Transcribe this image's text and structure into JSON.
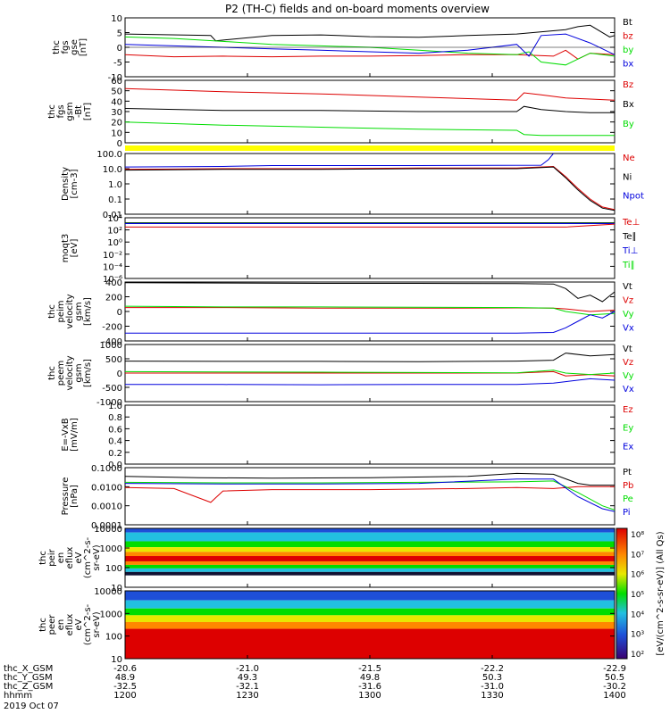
{
  "title": "P2 (TH-C) fields and on-board moments overview",
  "colors": {
    "black": "#000000",
    "red": "#dd0000",
    "green": "#00dd00",
    "blue": "#0000dd",
    "yellow": "#ffff00"
  },
  "chart_data": [
    {
      "type": "line",
      "ylabel_lines": [
        "thc",
        "fgs",
        "gse",
        "[nT]"
      ],
      "ylim": [
        -10,
        10
      ],
      "yticks": [
        "10",
        "5",
        "0",
        "-5",
        "-10"
      ],
      "legend": [
        {
          "label": "Bt",
          "color": "black"
        },
        {
          "label": "bz",
          "color": "red"
        },
        {
          "label": "by",
          "color": "green"
        },
        {
          "label": "bx",
          "color": "blue"
        }
      ],
      "series": [
        {
          "color": "black",
          "x": [
            0,
            35,
            37,
            60,
            80,
            100,
            120,
            140,
            160,
            180,
            185,
            190,
            198,
            200
          ],
          "y": [
            4.5,
            4.0,
            2.2,
            4.0,
            4.2,
            3.6,
            3.4,
            4.0,
            4.5,
            6.0,
            7.0,
            7.5,
            3.5,
            4.0
          ]
        },
        {
          "color": "red",
          "x": [
            0,
            20,
            40,
            60,
            80,
            100,
            120,
            140,
            160,
            175,
            180,
            185,
            190,
            200
          ],
          "y": [
            -2.5,
            -3.2,
            -3.0,
            -3.2,
            -3.0,
            -3.0,
            -2.8,
            -2.5,
            -2.5,
            -3.0,
            -1.0,
            -4.0,
            -2.0,
            -2.5
          ]
        },
        {
          "color": "green",
          "x": [
            0,
            20,
            40,
            60,
            80,
            100,
            120,
            140,
            160,
            165,
            170,
            180,
            190,
            200
          ],
          "y": [
            3.5,
            3.0,
            2.0,
            1.0,
            0.5,
            0.0,
            -1.0,
            -2.0,
            -2.5,
            -1.5,
            -5.0,
            -6.0,
            -2.0,
            -3.0
          ]
        },
        {
          "color": "blue",
          "x": [
            0,
            20,
            40,
            60,
            80,
            100,
            120,
            140,
            160,
            165,
            170,
            180,
            190,
            200
          ],
          "y": [
            1.0,
            0.5,
            0.0,
            -0.5,
            -1.0,
            -1.5,
            -2.0,
            -1.0,
            1.0,
            -3.0,
            4.0,
            4.5,
            1.5,
            -2.5
          ]
        }
      ]
    },
    {
      "type": "line",
      "ylabel_lines": [
        "thc",
        "fgs",
        "gsm",
        "-Bt",
        "[nT]"
      ],
      "ylim": [
        0,
        60
      ],
      "yticks": [
        "60",
        "50",
        "40",
        "30",
        "20",
        "10",
        "0"
      ],
      "legend": [
        {
          "label": "Bz",
          "color": "red"
        },
        {
          "label": "Bx",
          "color": "black"
        },
        {
          "label": "By",
          "color": "green"
        }
      ],
      "series": [
        {
          "color": "red",
          "x": [
            0,
            40,
            80,
            120,
            160,
            163,
            170,
            180,
            190,
            200
          ],
          "y": [
            52,
            49,
            47,
            44,
            41,
            48,
            46,
            43,
            42,
            41
          ]
        },
        {
          "color": "black",
          "x": [
            0,
            40,
            80,
            120,
            160,
            163,
            170,
            180,
            190,
            200
          ],
          "y": [
            33,
            31,
            31,
            30,
            30,
            35,
            32,
            30,
            29,
            29
          ]
        },
        {
          "color": "green",
          "x": [
            0,
            40,
            80,
            120,
            160,
            163,
            170,
            180,
            190,
            200
          ],
          "y": [
            20,
            17,
            15,
            13,
            12,
            8,
            7,
            7,
            7,
            7
          ]
        }
      ]
    },
    {
      "type": "line",
      "ylabel_lines": [
        "Density",
        "[cm-3]"
      ],
      "yscale": "log",
      "ylim": [
        0.01,
        100
      ],
      "yticks": [
        "100.0",
        "10.0",
        "1.0",
        "0.1",
        "0.01"
      ],
      "legend": [
        {
          "label": "Ne",
          "color": "red"
        },
        {
          "label": "Ni",
          "color": "black"
        },
        {
          "label": "Npot",
          "color": "blue"
        }
      ],
      "series": [
        {
          "color": "blue",
          "x": [
            0,
            40,
            60,
            120,
            170,
            173,
            175
          ],
          "y": [
            13,
            14,
            16,
            16,
            17,
            40,
            100
          ]
        },
        {
          "color": "red",
          "x": [
            0,
            40,
            80,
            120,
            160,
            175,
            180,
            185,
            190,
            195,
            200
          ],
          "y": [
            9,
            10,
            10,
            11,
            11,
            14,
            3,
            0.5,
            0.1,
            0.03,
            0.02
          ]
        },
        {
          "color": "black",
          "x": [
            0,
            40,
            80,
            120,
            160,
            175,
            180,
            185,
            190,
            195,
            200
          ],
          "y": [
            8,
            9,
            9,
            10,
            10,
            13,
            2.5,
            0.4,
            0.08,
            0.025,
            0.018
          ]
        }
      ]
    },
    {
      "type": "line",
      "ylabel_lines": [
        "moqt3",
        "[eV]"
      ],
      "yscale": "log",
      "ylim": [
        1e-06,
        10000.0
      ],
      "yticks": [
        "10⁴",
        "10²",
        "10⁰",
        "10⁻²",
        "10⁻⁴",
        "10⁻⁶"
      ],
      "legend": [
        {
          "label": "Te⊥",
          "color": "red"
        },
        {
          "label": "Te∥",
          "color": "black"
        },
        {
          "label": "Ti⊥",
          "color": "blue"
        },
        {
          "label": "Ti∥",
          "color": "green"
        }
      ],
      "series": [
        {
          "color": "black",
          "x": [
            0,
            100,
            200
          ],
          "y": [
            1500,
            1500,
            1500
          ]
        },
        {
          "color": "green",
          "x": [
            0,
            100,
            200
          ],
          "y": [
            1200,
            1200,
            1200
          ]
        },
        {
          "color": "blue",
          "x": [
            0,
            100,
            200
          ],
          "y": [
            1100,
            1100,
            1100
          ]
        },
        {
          "color": "red",
          "x": [
            0,
            100,
            180,
            200
          ],
          "y": [
            300,
            300,
            300,
            900
          ]
        }
      ]
    },
    {
      "type": "line",
      "ylabel_lines": [
        "thc",
        "peim",
        "velocity",
        "gsm",
        "[km/s]"
      ],
      "ylim": [
        -500,
        400
      ],
      "yticks": [
        "400",
        "200",
        "0",
        "-200",
        "-400"
      ],
      "legend": [
        {
          "label": "Vt",
          "color": "black"
        },
        {
          "label": "Vz",
          "color": "red"
        },
        {
          "label": "Vy",
          "color": "green"
        },
        {
          "label": "Vx",
          "color": "blue"
        }
      ],
      "series": [
        {
          "color": "black",
          "x": [
            0,
            40,
            80,
            120,
            160,
            175,
            180,
            185,
            190,
            195,
            200
          ],
          "y": [
            390,
            385,
            380,
            380,
            375,
            370,
            300,
            150,
            200,
            100,
            250
          ]
        },
        {
          "color": "red",
          "x": [
            0,
            40,
            80,
            120,
            160,
            175,
            180,
            190,
            200
          ],
          "y": [
            10,
            10,
            0,
            0,
            5,
            0,
            -10,
            -50,
            -30
          ]
        },
        {
          "color": "green",
          "x": [
            0,
            40,
            80,
            120,
            160,
            175,
            180,
            190,
            200
          ],
          "y": [
            30,
            20,
            20,
            15,
            10,
            0,
            -50,
            -100,
            -80
          ]
        },
        {
          "color": "blue",
          "x": [
            0,
            40,
            80,
            120,
            160,
            175,
            180,
            185,
            190,
            195,
            200
          ],
          "y": [
            -380,
            -380,
            -380,
            -380,
            -380,
            -370,
            -300,
            -200,
            -100,
            -150,
            -50
          ]
        }
      ]
    },
    {
      "type": "line",
      "ylabel_lines": [
        "thc",
        "peem",
        "velocity",
        "gsm",
        "[km/s]"
      ],
      "ylim": [
        -1000,
        1000
      ],
      "yticks": [
        "1000",
        "500",
        "0",
        "-500",
        "-1000"
      ],
      "legend": [
        {
          "label": "Vt",
          "color": "black"
        },
        {
          "label": "Vz",
          "color": "red"
        },
        {
          "label": "Vy",
          "color": "green"
        },
        {
          "label": "Vx",
          "color": "blue"
        }
      ],
      "series": [
        {
          "color": "black",
          "x": [
            0,
            40,
            80,
            120,
            160,
            175,
            180,
            190,
            200
          ],
          "y": [
            420,
            410,
            410,
            400,
            420,
            450,
            700,
            600,
            650
          ]
        },
        {
          "color": "red",
          "x": [
            0,
            40,
            80,
            120,
            160,
            175,
            180,
            190,
            200
          ],
          "y": [
            0,
            0,
            0,
            0,
            0,
            50,
            -100,
            -50,
            -100
          ]
        },
        {
          "color": "green",
          "x": [
            0,
            40,
            80,
            120,
            160,
            175,
            180,
            190,
            200
          ],
          "y": [
            50,
            40,
            30,
            20,
            10,
            100,
            0,
            -50,
            0
          ]
        },
        {
          "color": "blue",
          "x": [
            0,
            40,
            80,
            120,
            160,
            175,
            180,
            190,
            200
          ],
          "y": [
            -400,
            -400,
            -410,
            -400,
            -400,
            -350,
            -300,
            -200,
            -250
          ]
        }
      ]
    },
    {
      "type": "line",
      "ylabel_lines": [
        "E=-VxB",
        "[mV/m]"
      ],
      "ylim": [
        0,
        1
      ],
      "yticks": [
        "1.0",
        "0.8",
        "0.6",
        "0.4",
        "0.2",
        "0.0"
      ],
      "legend": [
        {
          "label": "Ez",
          "color": "red"
        },
        {
          "label": "Ey",
          "color": "green"
        },
        {
          "label": "Ex",
          "color": "blue"
        }
      ],
      "series": []
    },
    {
      "type": "line",
      "ylabel_lines": [
        "Pressure",
        "[nPa]"
      ],
      "yscale": "log",
      "ylim": [
        0.0001,
        0.1
      ],
      "yticks": [
        "0.1000",
        "0.0100",
        "0.0010",
        "0.0001"
      ],
      "legend": [
        {
          "label": "Pt",
          "color": "black"
        },
        {
          "label": "Pb",
          "color": "red"
        },
        {
          "label": "Pe",
          "color": "green"
        },
        {
          "label": "Pi",
          "color": "blue"
        }
      ],
      "series": [
        {
          "color": "black",
          "x": [
            0,
            30,
            60,
            100,
            140,
            160,
            175,
            185,
            190,
            200
          ],
          "y": [
            0.035,
            0.03,
            0.028,
            0.03,
            0.035,
            0.05,
            0.045,
            0.015,
            0.012,
            0.012
          ]
        },
        {
          "color": "red",
          "x": [
            0,
            20,
            35,
            40,
            60,
            100,
            140,
            160,
            175,
            185,
            200
          ],
          "y": [
            0.009,
            0.008,
            0.0015,
            0.006,
            0.007,
            0.007,
            0.008,
            0.009,
            0.008,
            0.01,
            0.01
          ]
        },
        {
          "color": "green",
          "x": [
            0,
            40,
            80,
            120,
            160,
            175,
            185,
            195,
            200
          ],
          "y": [
            0.017,
            0.016,
            0.016,
            0.017,
            0.018,
            0.02,
            0.005,
            0.001,
            0.0006
          ]
        },
        {
          "color": "blue",
          "x": [
            0,
            40,
            80,
            120,
            160,
            175,
            185,
            195,
            200
          ],
          "y": [
            0.015,
            0.014,
            0.014,
            0.015,
            0.025,
            0.025,
            0.003,
            0.0007,
            0.0005
          ]
        }
      ]
    },
    {
      "type": "heatmap",
      "ylabel_lines": [
        "thc",
        "peir",
        "en",
        "eflux",
        "eV",
        "(cm^2-s-",
        "sr-eV)"
      ],
      "yscale": "log",
      "ylim": [
        5,
        20000
      ],
      "yticks": [
        "10000",
        "1000",
        "100",
        "10"
      ]
    },
    {
      "type": "heatmap",
      "ylabel_lines": [
        "thc",
        "peer",
        "en",
        "eflux",
        "eV",
        "(cm^2-s-",
        "sr-eV)"
      ],
      "yscale": "log",
      "ylim": [
        5,
        20000
      ],
      "yticks": [
        "10000",
        "1000",
        "100",
        "10"
      ]
    }
  ],
  "colorbar": {
    "label": "[eV/(cm^2-s-sr-eV)] (All Qs)",
    "ticks": [
      "10⁸",
      "10⁷",
      "10⁶",
      "10⁵",
      "10⁴",
      "10³",
      "10²"
    ]
  },
  "axis_rows": [
    {
      "label": "thc_X_GSM",
      "values": [
        "-20.6",
        "-21.0",
        "-21.5",
        "-22.2",
        "-22.9"
      ]
    },
    {
      "label": "thc_Y_GSM",
      "values": [
        "48.9",
        "49.3",
        "49.8",
        "50.3",
        "50.5"
      ]
    },
    {
      "label": "thc_Z_GSM",
      "values": [
        "-32.5",
        "-32.1",
        "-31.6",
        "-31.0",
        "-30.2"
      ]
    },
    {
      "label": "hhmm",
      "values": [
        "1200",
        "1230",
        "1300",
        "1330",
        "1400"
      ]
    }
  ],
  "date": "2019 Oct 07"
}
